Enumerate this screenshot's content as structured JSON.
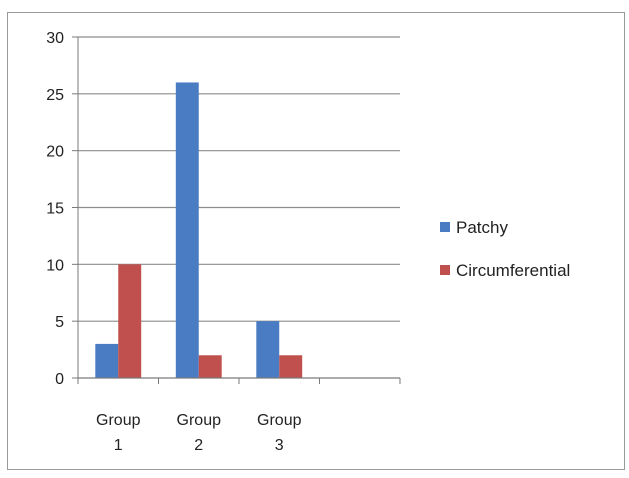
{
  "chart_data": {
    "type": "bar",
    "categories": [
      [
        "Group",
        "1"
      ],
      [
        "Group",
        "2"
      ],
      [
        "Group",
        "3"
      ],
      [
        "",
        ""
      ]
    ],
    "series": [
      {
        "name": "Patchy",
        "color": "#4a7cc4",
        "values": [
          3,
          26,
          5,
          null
        ]
      },
      {
        "name": "Circumferential",
        "color": "#c0504d",
        "values": [
          10,
          2,
          2,
          null
        ]
      }
    ],
    "ylim": [
      0,
      30
    ],
    "yticks": [
      0,
      5,
      10,
      15,
      20,
      25,
      30
    ],
    "grid": true,
    "legend": "right"
  }
}
